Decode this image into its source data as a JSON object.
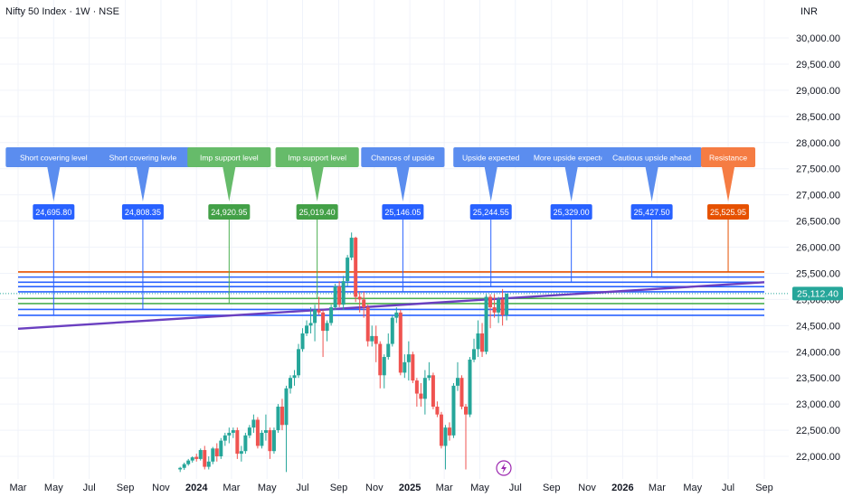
{
  "header": {
    "title": "Nifty 50 Index · 1W · NSE",
    "currency": "INR"
  },
  "colors": {
    "up": "#26a69a",
    "down": "#ef5350",
    "blue": "#2962ff",
    "lightBlue": "#5b8def",
    "green": "#4caf50",
    "orange": "#e65100",
    "lightOrange": "#f57c43",
    "trend": "#6a3fc0",
    "grid": "#f0f3fa",
    "lastPrice": "#26a69a",
    "lightning": "#9c27b0"
  },
  "last_price_label": "25,112.40",
  "lightning_icon": "lightning-icon",
  "chart_data": {
    "type": "candlestick",
    "title": "Nifty 50 Index · 1W · NSE",
    "ylabel": "INR",
    "ylim": [
      21700,
      30300
    ],
    "y_ticks": [
      {
        "v": 22000,
        "label": "22,000.00"
      },
      {
        "v": 22500,
        "label": "22,500.00"
      },
      {
        "v": 23000,
        "label": "23,000.00"
      },
      {
        "v": 23500,
        "label": "23,500.00"
      },
      {
        "v": 24000,
        "label": "24,000.00"
      },
      {
        "v": 24500,
        "label": "24,500.00"
      },
      {
        "v": 25000,
        "label": "25,000.00"
      },
      {
        "v": 25500,
        "label": "25,500.00"
      },
      {
        "v": 26000,
        "label": "26,000.00"
      },
      {
        "v": 26500,
        "label": "26,500.00"
      },
      {
        "v": 27000,
        "label": "27,000.00"
      },
      {
        "v": 27500,
        "label": "27,500.00"
      },
      {
        "v": 28000,
        "label": "28,000.00"
      },
      {
        "v": 28500,
        "label": "28,500.00"
      },
      {
        "v": 29000,
        "label": "29,000.00"
      },
      {
        "v": 29500,
        "label": "29,500.00"
      },
      {
        "v": 30000,
        "label": "30,000.00"
      }
    ],
    "x_ticks": [
      {
        "d": "2023-03-01",
        "label": "Mar",
        "bold": false
      },
      {
        "d": "2023-05-01",
        "label": "May",
        "bold": false
      },
      {
        "d": "2023-07-01",
        "label": "Jul",
        "bold": false
      },
      {
        "d": "2023-09-01",
        "label": "Sep",
        "bold": false
      },
      {
        "d": "2023-11-01",
        "label": "Nov",
        "bold": false
      },
      {
        "d": "2024-01-01",
        "label": "2024",
        "bold": true
      },
      {
        "d": "2024-03-01",
        "label": "Mar",
        "bold": false
      },
      {
        "d": "2024-05-01",
        "label": "May",
        "bold": false
      },
      {
        "d": "2024-07-01",
        "label": "Jul",
        "bold": false
      },
      {
        "d": "2024-09-01",
        "label": "Sep",
        "bold": false
      },
      {
        "d": "2024-11-01",
        "label": "Nov",
        "bold": false
      },
      {
        "d": "2025-01-01",
        "label": "2025",
        "bold": true
      },
      {
        "d": "2025-03-01",
        "label": "Mar",
        "bold": false
      },
      {
        "d": "2025-05-01",
        "label": "May",
        "bold": false
      },
      {
        "d": "2025-07-01",
        "label": "Jul",
        "bold": false
      },
      {
        "d": "2025-09-01",
        "label": "Sep",
        "bold": false
      },
      {
        "d": "2025-11-01",
        "label": "Nov",
        "bold": false
      },
      {
        "d": "2026-01-01",
        "label": "2026",
        "bold": true
      },
      {
        "d": "2026-03-01",
        "label": "Mar",
        "bold": false
      },
      {
        "d": "2026-05-01",
        "label": "May",
        "bold": false
      },
      {
        "d": "2026-07-01",
        "label": "Jul",
        "bold": false
      },
      {
        "d": "2026-09-01",
        "label": "Sep",
        "bold": false
      }
    ],
    "candles": [
      {
        "d": "2023-12-04",
        "o": 21750,
        "h": 21800,
        "l": 21700,
        "c": 21780
      },
      {
        "d": "2023-12-11",
        "o": 21780,
        "h": 21880,
        "l": 21740,
        "c": 21850
      },
      {
        "d": "2023-12-18",
        "o": 21850,
        "h": 21950,
        "l": 21820,
        "c": 21920
      },
      {
        "d": "2023-12-25",
        "o": 21920,
        "h": 22000,
        "l": 21880,
        "c": 21980
      },
      {
        "d": "2024-01-01",
        "o": 21990,
        "h": 22050,
        "l": 21900,
        "c": 21950
      },
      {
        "d": "2024-01-08",
        "o": 21950,
        "h": 22150,
        "l": 21920,
        "c": 22120
      },
      {
        "d": "2024-01-15",
        "o": 22120,
        "h": 22200,
        "l": 21750,
        "c": 21800
      },
      {
        "d": "2024-01-22",
        "o": 21800,
        "h": 22000,
        "l": 21750,
        "c": 21900
      },
      {
        "d": "2024-01-29",
        "o": 21900,
        "h": 22180,
        "l": 21850,
        "c": 22150
      },
      {
        "d": "2024-02-05",
        "o": 22150,
        "h": 22250,
        "l": 21900,
        "c": 22000
      },
      {
        "d": "2024-02-12",
        "o": 22000,
        "h": 22350,
        "l": 21950,
        "c": 22300
      },
      {
        "d": "2024-02-19",
        "o": 22300,
        "h": 22450,
        "l": 22200,
        "c": 22400
      },
      {
        "d": "2024-02-26",
        "o": 22400,
        "h": 22550,
        "l": 22250,
        "c": 22450
      },
      {
        "d": "2024-03-04",
        "o": 22450,
        "h": 22550,
        "l": 22350,
        "c": 22500
      },
      {
        "d": "2024-03-11",
        "o": 22500,
        "h": 22550,
        "l": 21950,
        "c": 22050
      },
      {
        "d": "2024-03-18",
        "o": 22050,
        "h": 22200,
        "l": 21900,
        "c": 22100
      },
      {
        "d": "2024-03-25",
        "o": 22100,
        "h": 22450,
        "l": 22050,
        "c": 22400
      },
      {
        "d": "2024-04-01",
        "o": 22400,
        "h": 22600,
        "l": 22350,
        "c": 22550
      },
      {
        "d": "2024-04-08",
        "o": 22550,
        "h": 22800,
        "l": 22450,
        "c": 22700
      },
      {
        "d": "2024-04-15",
        "o": 22700,
        "h": 22750,
        "l": 22150,
        "c": 22200
      },
      {
        "d": "2024-04-22",
        "o": 22200,
        "h": 22500,
        "l": 22150,
        "c": 22450
      },
      {
        "d": "2024-04-29",
        "o": 22450,
        "h": 22800,
        "l": 22300,
        "c": 22500
      },
      {
        "d": "2024-05-06",
        "o": 22500,
        "h": 22550,
        "l": 21950,
        "c": 22100
      },
      {
        "d": "2024-05-13",
        "o": 22100,
        "h": 22550,
        "l": 22050,
        "c": 22500
      },
      {
        "d": "2024-05-20",
        "o": 22500,
        "h": 23000,
        "l": 22450,
        "c": 22950
      },
      {
        "d": "2024-05-27",
        "o": 22950,
        "h": 23100,
        "l": 22500,
        "c": 22600
      },
      {
        "d": "2024-06-03",
        "o": 22600,
        "h": 23350,
        "l": 21700,
        "c": 23300
      },
      {
        "d": "2024-06-10",
        "o": 23300,
        "h": 23550,
        "l": 23200,
        "c": 23500
      },
      {
        "d": "2024-06-17",
        "o": 23500,
        "h": 23650,
        "l": 23350,
        "c": 23550
      },
      {
        "d": "2024-06-24",
        "o": 23550,
        "h": 24150,
        "l": 23500,
        "c": 24050
      },
      {
        "d": "2024-07-01",
        "o": 24050,
        "h": 24450,
        "l": 24000,
        "c": 24350
      },
      {
        "d": "2024-07-08",
        "o": 24350,
        "h": 24600,
        "l": 24300,
        "c": 24500
      },
      {
        "d": "2024-07-15",
        "o": 24500,
        "h": 24850,
        "l": 24350,
        "c": 24550
      },
      {
        "d": "2024-07-22",
        "o": 24550,
        "h": 24900,
        "l": 24200,
        "c": 24800
      },
      {
        "d": "2024-07-29",
        "o": 24800,
        "h": 25050,
        "l": 24700,
        "c": 24750
      },
      {
        "d": "2024-08-05",
        "o": 24750,
        "h": 24800,
        "l": 23900,
        "c": 24400
      },
      {
        "d": "2024-08-12",
        "o": 24400,
        "h": 24600,
        "l": 24200,
        "c": 24550
      },
      {
        "d": "2024-08-19",
        "o": 24550,
        "h": 24900,
        "l": 24500,
        "c": 24850
      },
      {
        "d": "2024-08-26",
        "o": 24850,
        "h": 25300,
        "l": 24800,
        "c": 25250
      },
      {
        "d": "2024-09-02",
        "o": 25250,
        "h": 25350,
        "l": 24850,
        "c": 24900
      },
      {
        "d": "2024-09-09",
        "o": 24900,
        "h": 25450,
        "l": 24800,
        "c": 25350
      },
      {
        "d": "2024-09-16",
        "o": 25350,
        "h": 25850,
        "l": 25250,
        "c": 25800
      },
      {
        "d": "2024-09-23",
        "o": 25800,
        "h": 26280,
        "l": 25750,
        "c": 26180
      },
      {
        "d": "2024-09-30",
        "o": 26180,
        "h": 26200,
        "l": 24950,
        "c": 25050
      },
      {
        "d": "2024-10-07",
        "o": 25050,
        "h": 25150,
        "l": 24750,
        "c": 25000
      },
      {
        "d": "2024-10-14",
        "o": 25000,
        "h": 25150,
        "l": 24650,
        "c": 24850
      },
      {
        "d": "2024-10-21",
        "o": 24850,
        "h": 24900,
        "l": 24100,
        "c": 24200
      },
      {
        "d": "2024-10-28",
        "o": 24200,
        "h": 24500,
        "l": 24100,
        "c": 24300
      },
      {
        "d": "2024-11-04",
        "o": 24300,
        "h": 24500,
        "l": 23800,
        "c": 24150
      },
      {
        "d": "2024-11-11",
        "o": 24150,
        "h": 24200,
        "l": 23300,
        "c": 23550
      },
      {
        "d": "2024-11-18",
        "o": 23550,
        "h": 23950,
        "l": 23300,
        "c": 23900
      },
      {
        "d": "2024-11-25",
        "o": 23900,
        "h": 24350,
        "l": 23850,
        "c": 24150
      },
      {
        "d": "2024-12-02",
        "o": 24150,
        "h": 24700,
        "l": 24100,
        "c": 24650
      },
      {
        "d": "2024-12-09",
        "o": 24650,
        "h": 24850,
        "l": 24550,
        "c": 24750
      },
      {
        "d": "2024-12-16",
        "o": 24750,
        "h": 24800,
        "l": 23550,
        "c": 23600
      },
      {
        "d": "2024-12-23",
        "o": 23600,
        "h": 23950,
        "l": 23500,
        "c": 23800
      },
      {
        "d": "2024-12-30",
        "o": 23800,
        "h": 24200,
        "l": 23450,
        "c": 23950
      },
      {
        "d": "2025-01-06",
        "o": 23950,
        "h": 24000,
        "l": 23400,
        "c": 23450
      },
      {
        "d": "2025-01-13",
        "o": 23450,
        "h": 23500,
        "l": 22950,
        "c": 23200
      },
      {
        "d": "2025-01-20",
        "o": 23200,
        "h": 23400,
        "l": 22950,
        "c": 23100
      },
      {
        "d": "2025-01-27",
        "o": 23100,
        "h": 23650,
        "l": 22800,
        "c": 23500
      },
      {
        "d": "2025-02-03",
        "o": 23500,
        "h": 23800,
        "l": 23450,
        "c": 23550
      },
      {
        "d": "2025-02-10",
        "o": 23550,
        "h": 23600,
        "l": 22900,
        "c": 22950
      },
      {
        "d": "2025-02-17",
        "o": 22950,
        "h": 23050,
        "l": 22750,
        "c": 22800
      },
      {
        "d": "2025-02-24",
        "o": 22800,
        "h": 22850,
        "l": 22150,
        "c": 22200
      },
      {
        "d": "2025-03-03",
        "o": 22200,
        "h": 22600,
        "l": 21750,
        "c": 22550
      },
      {
        "d": "2025-03-10",
        "o": 22550,
        "h": 22650,
        "l": 22300,
        "c": 22400
      },
      {
        "d": "2025-03-17",
        "o": 22400,
        "h": 23400,
        "l": 22350,
        "c": 23350
      },
      {
        "d": "2025-03-24",
        "o": 23350,
        "h": 23800,
        "l": 23250,
        "c": 23500
      },
      {
        "d": "2025-03-31",
        "o": 23500,
        "h": 23550,
        "l": 22900,
        "c": 22950
      },
      {
        "d": "2025-04-07",
        "o": 22950,
        "h": 23000,
        "l": 21750,
        "c": 22800
      },
      {
        "d": "2025-04-14",
        "o": 22800,
        "h": 23900,
        "l": 22750,
        "c": 23850
      },
      {
        "d": "2025-04-21",
        "o": 23850,
        "h": 24250,
        "l": 23800,
        "c": 24050
      },
      {
        "d": "2025-04-28",
        "o": 24050,
        "h": 24600,
        "l": 23900,
        "c": 24350
      },
      {
        "d": "2025-05-05",
        "o": 24350,
        "h": 24550,
        "l": 23900,
        "c": 24000
      },
      {
        "d": "2025-05-12",
        "o": 24000,
        "h": 25100,
        "l": 23950,
        "c": 25050
      },
      {
        "d": "2025-05-19",
        "o": 25050,
        "h": 25100,
        "l": 24450,
        "c": 24850
      },
      {
        "d": "2025-05-26",
        "o": 24850,
        "h": 25100,
        "l": 24650,
        "c": 24750
      },
      {
        "d": "2025-06-02",
        "o": 24750,
        "h": 25050,
        "l": 24550,
        "c": 25000
      },
      {
        "d": "2025-06-09",
        "o": 25000,
        "h": 25200,
        "l": 24500,
        "c": 24700
      },
      {
        "d": "2025-06-16",
        "o": 24700,
        "h": 25100,
        "l": 24600,
        "c": 25112.4
      }
    ],
    "levels": [
      {
        "value": 24695.8,
        "x_end": "2023-05-01",
        "color": "#2962ff",
        "text": "Short covering level",
        "value_label": "24,695.80",
        "box": "#5b8def",
        "vbox": "#2962ff"
      },
      {
        "value": 24808.35,
        "x_end": "2023-10-01",
        "color": "#2962ff",
        "text": "Short covering levle",
        "value_label": "24,808.35",
        "box": "#5b8def",
        "vbox": "#2962ff"
      },
      {
        "value": 24920.95,
        "x_end": "2024-02-26",
        "color": "#4caf50",
        "text": "Imp support level",
        "value_label": "24,920.95",
        "box": "#66bb6a",
        "vbox": "#43a047"
      },
      {
        "value": 25019.4,
        "x_end": "2024-07-26",
        "color": "#4caf50",
        "text": "Imp support level",
        "value_label": "25,019.40",
        "box": "#66bb6a",
        "vbox": "#43a047"
      },
      {
        "value": 25146.05,
        "x_end": "2024-12-20",
        "color": "#2962ff",
        "text": "Chances of upside",
        "value_label": "25,146.05",
        "box": "#5b8def",
        "vbox": "#2962ff"
      },
      {
        "value": 25244.55,
        "x_end": "2025-05-20",
        "color": "#2962ff",
        "text": "Upside expected",
        "value_label": "25,244.55",
        "box": "#5b8def",
        "vbox": "#2962ff"
      },
      {
        "value": 25329.0,
        "x_end": "2025-10-05",
        "color": "#2962ff",
        "text": "More upside expected",
        "value_label": "25,329.00",
        "box": "#5b8def",
        "vbox": "#2962ff"
      },
      {
        "value": 25427.5,
        "x_end": "2026-02-20",
        "color": "#2962ff",
        "text": "Cautious upside ahead",
        "value_label": "25,427.50",
        "box": "#5b8def",
        "vbox": "#2962ff"
      },
      {
        "value": 25525.95,
        "x_end": "2026-07-01",
        "color": "#e65100",
        "text": "Resistance",
        "value_label": "25,525.95",
        "box": "#f57c43",
        "vbox": "#e65100"
      }
    ],
    "trendline": {
      "start": {
        "d": "2023-03-01",
        "v": 24440
      },
      "end": {
        "d": "2026-09-01",
        "v": 25330
      }
    }
  }
}
